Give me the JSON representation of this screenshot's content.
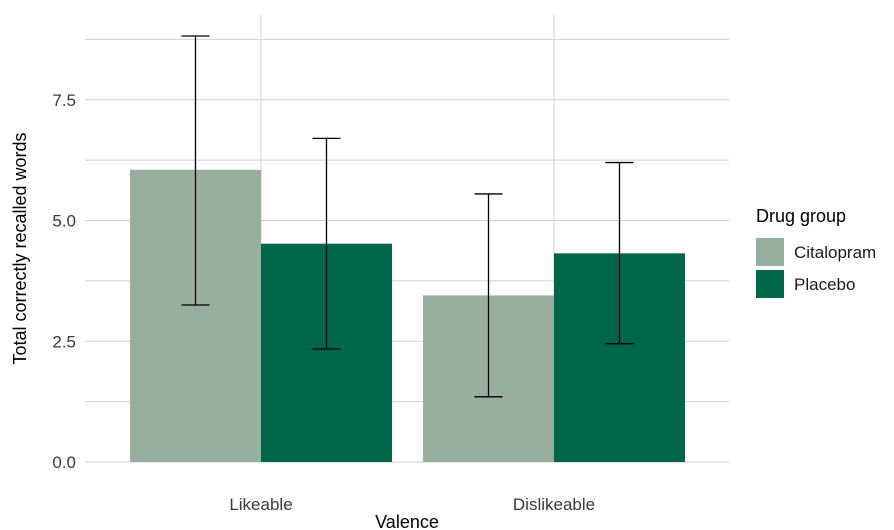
{
  "chart_data": {
    "type": "bar",
    "title": "",
    "xlabel": "Valence",
    "ylabel": "Total correctly recalled words",
    "categories": [
      "Likeable",
      "Dislikeable"
    ],
    "ylim": [
      0,
      9.5
    ],
    "yticks": [
      0.0,
      2.5,
      5.0,
      7.5
    ],
    "ytick_labels": [
      "0.0",
      "2.5",
      "5.0",
      "7.5"
    ],
    "grid": true,
    "legend": {
      "title": "Drug group",
      "placement": "right"
    },
    "series": [
      {
        "name": "Citalopram",
        "color": "#98ae9f",
        "values": [
          6.05,
          3.45
        ],
        "error_low": [
          3.25,
          1.35
        ],
        "error_high": [
          8.82,
          5.55
        ]
      },
      {
        "name": "Placebo",
        "color": "#00664a",
        "values": [
          4.52,
          4.32
        ],
        "error_low": [
          2.34,
          2.45
        ],
        "error_high": [
          6.7,
          6.2
        ]
      }
    ]
  }
}
